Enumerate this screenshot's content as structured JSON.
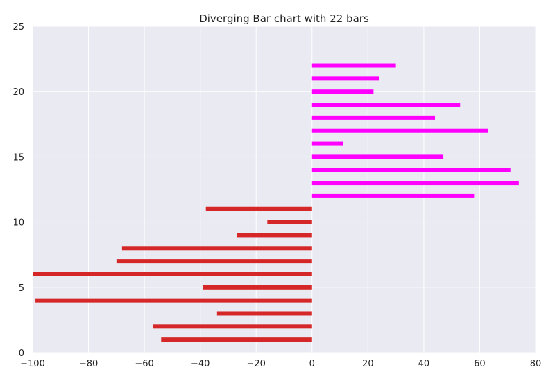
{
  "chart_data": {
    "type": "bar",
    "orientation": "horizontal",
    "title": "Diverging Bar chart with 22 bars",
    "xlabel": "",
    "ylabel": "",
    "xlim": [
      -100,
      80
    ],
    "ylim": [
      0,
      25
    ],
    "xticks": [
      -100,
      -80,
      -60,
      -40,
      -20,
      0,
      20,
      40,
      60,
      80
    ],
    "yticks": [
      0,
      5,
      10,
      15,
      20,
      25
    ],
    "grid": true,
    "background_color": "#eaeaf2",
    "negative_color": "#d62728",
    "positive_color": "#ff00ff",
    "bars": [
      {
        "y": 1,
        "value": -54
      },
      {
        "y": 2,
        "value": -57
      },
      {
        "y": 3,
        "value": -34
      },
      {
        "y": 4,
        "value": -99
      },
      {
        "y": 5,
        "value": -39
      },
      {
        "y": 6,
        "value": -100
      },
      {
        "y": 7,
        "value": -70
      },
      {
        "y": 8,
        "value": -68
      },
      {
        "y": 9,
        "value": -27
      },
      {
        "y": 10,
        "value": -16
      },
      {
        "y": 11,
        "value": -38
      },
      {
        "y": 12,
        "value": 58
      },
      {
        "y": 13,
        "value": 74
      },
      {
        "y": 14,
        "value": 71
      },
      {
        "y": 15,
        "value": 47
      },
      {
        "y": 16,
        "value": 11
      },
      {
        "y": 17,
        "value": 63
      },
      {
        "y": 18,
        "value": 44
      },
      {
        "y": 19,
        "value": 53
      },
      {
        "y": 20,
        "value": 22
      },
      {
        "y": 21,
        "value": 24
      },
      {
        "y": 22,
        "value": 30
      }
    ]
  }
}
